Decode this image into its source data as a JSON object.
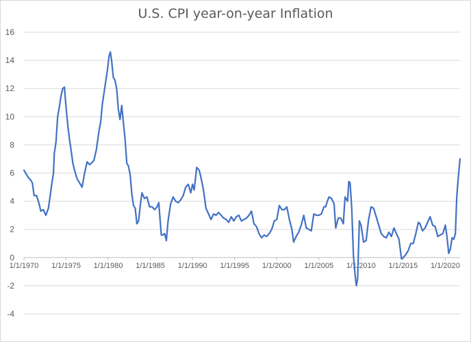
{
  "chart_data": {
    "type": "line",
    "title": "U.S. CPI year-on-year Inflation",
    "xlabel": "",
    "ylabel": "",
    "ylim": [
      -4,
      16
    ],
    "yticks": [
      -4,
      -2,
      0,
      2,
      4,
      6,
      8,
      10,
      12,
      14,
      16
    ],
    "xlim": [
      1970.0,
      2021.75
    ],
    "xticks": [
      {
        "label": "1/1/1970",
        "x": 1970
      },
      {
        "label": "1/1/1975",
        "x": 1975
      },
      {
        "label": "1/1/1980",
        "x": 1980
      },
      {
        "label": "1/1/1985",
        "x": 1985
      },
      {
        "label": "1/1/1990",
        "x": 1990
      },
      {
        "label": "1/1/1995",
        "x": 1995
      },
      {
        "label": "1/1/2000",
        "x": 2000
      },
      {
        "label": "1/1/2005",
        "x": 2005
      },
      {
        "label": "1/1/2010",
        "x": 2010
      },
      {
        "label": "1/1/2015",
        "x": 2015
      },
      {
        "label": "1/1/2020",
        "x": 2020
      }
    ],
    "grid": true,
    "line_color": "#4472C4",
    "series": [
      {
        "name": "",
        "x": [
          1970.0,
          1970.2,
          1970.5,
          1970.8,
          1971.0,
          1971.2,
          1971.5,
          1971.8,
          1972.0,
          1972.3,
          1972.6,
          1972.9,
          1973.0,
          1973.3,
          1973.5,
          1973.6,
          1973.8,
          1974.0,
          1974.2,
          1974.4,
          1974.6,
          1974.8,
          1974.95,
          1975.2,
          1975.4,
          1975.6,
          1975.8,
          1976.0,
          1976.3,
          1976.6,
          1976.9,
          1977.2,
          1977.5,
          1977.8,
          1978.0,
          1978.3,
          1978.6,
          1978.9,
          1979.1,
          1979.3,
          1979.6,
          1979.9,
          1980.1,
          1980.25,
          1980.4,
          1980.6,
          1980.8,
          1981.0,
          1981.2,
          1981.4,
          1981.6,
          1981.8,
          1982.0,
          1982.2,
          1982.4,
          1982.6,
          1982.8,
          1983.0,
          1983.2,
          1983.4,
          1983.6,
          1983.8,
          1984.0,
          1984.3,
          1984.6,
          1984.9,
          1985.2,
          1985.5,
          1985.8,
          1986.0,
          1986.3,
          1986.5,
          1986.7,
          1986.9,
          1987.1,
          1987.4,
          1987.7,
          1988.0,
          1988.3,
          1988.6,
          1988.9,
          1989.2,
          1989.5,
          1989.8,
          1990.0,
          1990.2,
          1990.5,
          1990.8,
          1991.0,
          1991.3,
          1991.6,
          1991.9,
          1992.2,
          1992.5,
          1992.8,
          1993.1,
          1993.4,
          1993.7,
          1994.0,
          1994.3,
          1994.6,
          1994.9,
          1995.2,
          1995.5,
          1995.8,
          1996.1,
          1996.4,
          1996.7,
          1997.0,
          1997.3,
          1997.6,
          1997.9,
          1998.2,
          1998.5,
          1998.8,
          1999.1,
          1999.4,
          1999.7,
          2000.0,
          2000.3,
          2000.6,
          2000.9,
          2001.2,
          2001.5,
          2001.8,
          2002.0,
          2002.3,
          2002.6,
          2002.9,
          2003.2,
          2003.5,
          2003.8,
          2004.1,
          2004.4,
          2004.7,
          2005.0,
          2005.3,
          2005.6,
          2005.8,
          2006.0,
          2006.2,
          2006.5,
          2006.8,
          2007.0,
          2007.3,
          2007.6,
          2007.9,
          2008.1,
          2008.4,
          2008.55,
          2008.7,
          2008.9,
          2009.1,
          2009.3,
          2009.45,
          2009.6,
          2009.8,
          2010.0,
          2010.3,
          2010.6,
          2010.9,
          2011.2,
          2011.5,
          2011.8,
          2012.1,
          2012.4,
          2012.7,
          2013.0,
          2013.3,
          2013.6,
          2013.9,
          2014.2,
          2014.5,
          2014.8,
          2015.0,
          2015.3,
          2015.6,
          2015.9,
          2016.2,
          2016.5,
          2016.8,
          2017.0,
          2017.3,
          2017.6,
          2017.9,
          2018.2,
          2018.5,
          2018.8,
          2019.1,
          2019.4,
          2019.7,
          2020.0,
          2020.2,
          2020.4,
          2020.6,
          2020.8,
          2021.0,
          2021.2,
          2021.35,
          2021.5,
          2021.75
        ],
        "values": [
          6.2,
          6.0,
          5.7,
          5.5,
          5.3,
          4.4,
          4.4,
          3.8,
          3.3,
          3.4,
          3.0,
          3.5,
          3.9,
          5.2,
          6.0,
          7.4,
          8.2,
          10.0,
          10.7,
          11.5,
          12.0,
          12.1,
          11.0,
          9.4,
          8.4,
          7.6,
          6.7,
          6.2,
          5.6,
          5.3,
          5.0,
          6.0,
          6.8,
          6.6,
          6.7,
          6.9,
          7.7,
          9.0,
          9.6,
          10.9,
          12.1,
          13.3,
          14.3,
          14.6,
          14.0,
          12.8,
          12.6,
          12.0,
          10.5,
          9.8,
          10.8,
          9.6,
          8.4,
          6.7,
          6.5,
          5.9,
          4.5,
          3.7,
          3.5,
          2.4,
          2.6,
          3.7,
          4.6,
          4.2,
          4.3,
          3.6,
          3.6,
          3.4,
          3.6,
          3.9,
          1.6,
          1.6,
          1.7,
          1.2,
          2.6,
          3.8,
          4.3,
          4.0,
          3.9,
          4.1,
          4.4,
          5.0,
          5.2,
          4.6,
          5.2,
          4.8,
          6.4,
          6.2,
          5.7,
          4.8,
          3.5,
          3.1,
          2.7,
          3.1,
          3.0,
          3.2,
          3.0,
          2.8,
          2.7,
          2.5,
          2.9,
          2.6,
          2.9,
          3.0,
          2.6,
          2.7,
          2.8,
          3.0,
          3.3,
          2.4,
          2.2,
          1.7,
          1.4,
          1.6,
          1.5,
          1.7,
          2.0,
          2.6,
          2.7,
          3.7,
          3.4,
          3.4,
          3.6,
          2.7,
          2.0,
          1.1,
          1.5,
          1.8,
          2.3,
          3.0,
          2.1,
          2.0,
          1.9,
          3.1,
          3.0,
          3.0,
          3.1,
          3.6,
          3.6,
          4.0,
          4.3,
          4.2,
          3.8,
          2.1,
          2.8,
          2.8,
          2.4,
          4.3,
          4.0,
          5.4,
          5.3,
          3.5,
          0.1,
          -1.3,
          -2.0,
          -1.5,
          2.6,
          2.3,
          1.1,
          1.2,
          2.7,
          3.6,
          3.5,
          2.9,
          2.3,
          1.7,
          1.5,
          1.4,
          1.8,
          1.5,
          2.1,
          1.7,
          1.3,
          -0.1,
          0.0,
          0.2,
          0.5,
          1.0,
          1.0,
          1.7,
          2.5,
          2.4,
          1.9,
          2.1,
          2.5,
          2.9,
          2.3,
          2.2,
          1.5,
          1.6,
          1.7,
          2.3,
          1.5,
          0.3,
          0.6,
          1.4,
          1.3,
          1.7,
          4.2,
          5.4,
          7.0
        ]
      }
    ]
  }
}
